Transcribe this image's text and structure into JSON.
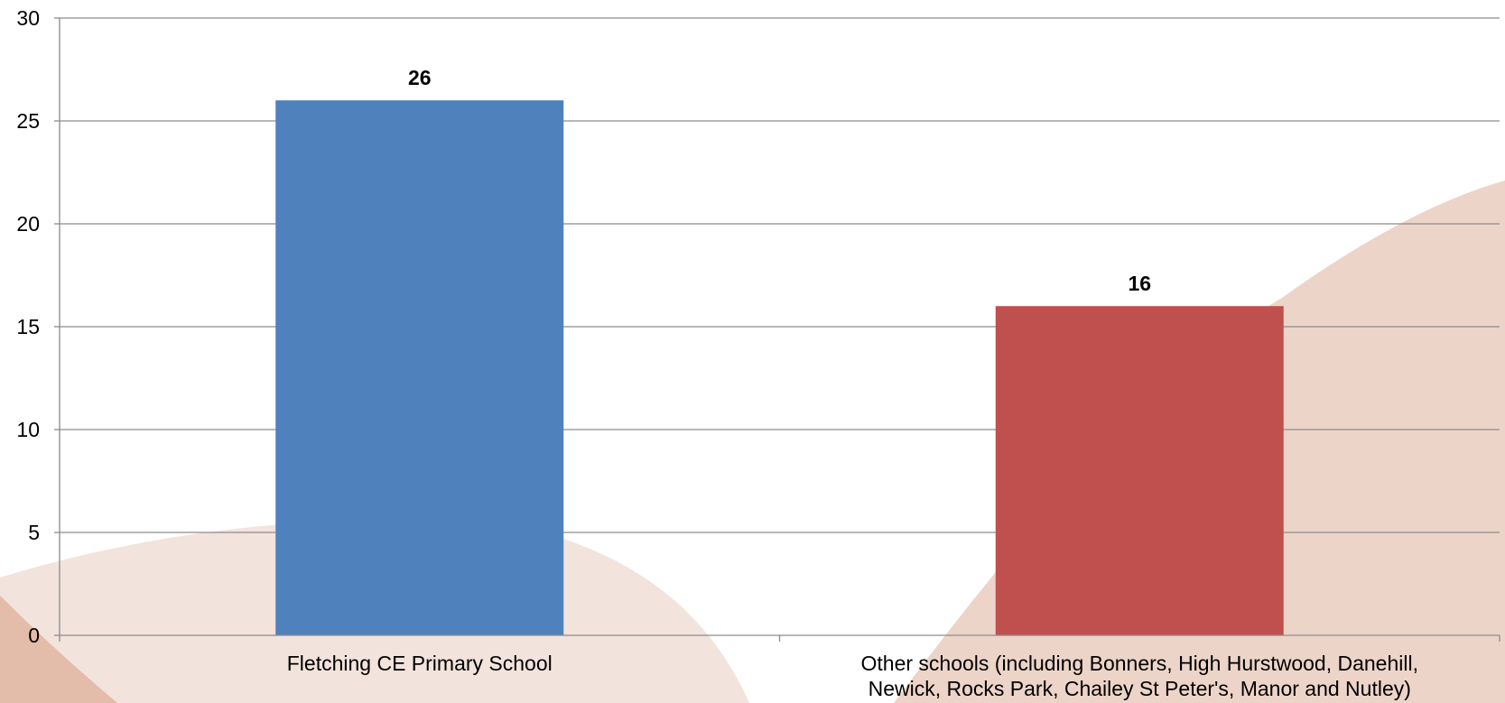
{
  "colors": {
    "background": "#ffffff",
    "decor_light": "#f2e3dc",
    "decor_mid": "#edd4c8",
    "decor_dark": "#e3bcaa",
    "grid": "#8c8c8c",
    "axis": "#8c8c8c",
    "text": "#000000"
  },
  "chart_data": {
    "type": "bar",
    "title": "",
    "xlabel": "",
    "ylabel": "",
    "ylim": [
      0,
      30
    ],
    "yticks": [
      0,
      5,
      10,
      15,
      20,
      25,
      30
    ],
    "grid": true,
    "legend": "none",
    "categories": [
      "Fletching CE Primary School",
      "Other schools (including Bonners, High Hurstwood, Danehill, Newick, Rocks Park, Chailey St Peter's, Manor and Nutley)"
    ],
    "category_label_lines": [
      [
        "Fletching CE Primary School"
      ],
      [
        "Other schools (including Bonners, High Hurstwood, Danehill,",
        "Newick, Rocks Park, Chailey St Peter's, Manor and Nutley)"
      ]
    ],
    "values": [
      26,
      16
    ],
    "data_labels": [
      "26",
      "16"
    ],
    "bar_colors": [
      "#4f81bd",
      "#c0504d"
    ]
  }
}
